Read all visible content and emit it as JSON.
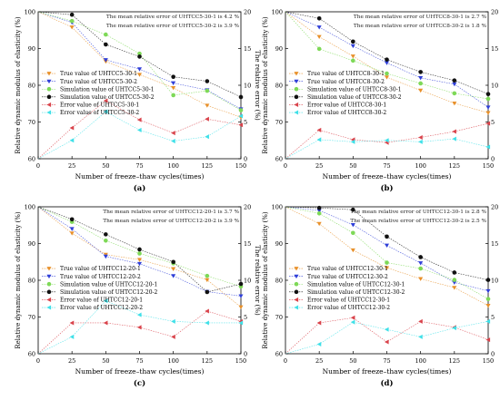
{
  "figure": {
    "markers": {
      "true1": "triangle-down",
      "true2": "triangle-down",
      "sim1": "circle",
      "sim2": "circle",
      "err1": "triangle-left",
      "err2": "triangle-left"
    },
    "colors": {
      "true1": "#e8902a",
      "true2": "#2f3fd8",
      "sim1": "#7ed957",
      "sim2": "#111111",
      "err1": "#d9434b",
      "err2": "#3fe0e8"
    }
  },
  "chart_data": [
    {
      "type": "line",
      "panel_label": "(a)",
      "xlabel": "Number of freeze–thaw cycles(times)",
      "ylabel": "Relative dynamic modulus of elasticity (%)",
      "y2label": "The relative error (%)",
      "x": [
        0,
        25,
        50,
        75,
        100,
        125,
        150
      ],
      "xticks": [
        "0",
        "25",
        "50",
        "75",
        "100",
        "125",
        "150"
      ],
      "ylim": [
        60,
        100
      ],
      "yticks": [
        "60",
        "70",
        "80",
        "90",
        "100"
      ],
      "y2lim": [
        0,
        20
      ],
      "y2ticks": [
        "0",
        "5",
        "10",
        "15",
        "20"
      ],
      "annotations": [
        "The mean relative error of UHTCC5-30-1 is 4.2 %",
        "The mean relative error of UHTCC5-30-2 is 3.9 %"
      ],
      "series": [
        {
          "key": "true1",
          "name": "True value of UHTCC5-30-1",
          "axis": "left",
          "values": [
            100,
            95.8,
            86.5,
            82.9,
            79.3,
            74.5,
            71.3
          ]
        },
        {
          "key": "true2",
          "name": "True value of UHTCC5-30-2",
          "axis": "left",
          "values": [
            100,
            97.1,
            86.9,
            84.4,
            80.6,
            78.7,
            73.5
          ]
        },
        {
          "key": "sim1",
          "name": "Simulation value of UHTCC5-30-1",
          "axis": "left",
          "values": [
            100,
            97.5,
            93.8,
            88.6,
            77.3,
            78.5,
            73.2
          ]
        },
        {
          "key": "sim2",
          "name": "Simulation value of UHTCC5-30-2",
          "axis": "left",
          "values": [
            100,
            99.2,
            91.1,
            87.8,
            82.3,
            81.1,
            76.8
          ]
        },
        {
          "key": "err1",
          "name": "Error value of UHTCC5-30-1",
          "axis": "right",
          "values": [
            0,
            4.2,
            7.9,
            5.3,
            3.5,
            5.4,
            4.6
          ]
        },
        {
          "key": "err2",
          "name": "Error value of UHTCC5-30-2",
          "axis": "right",
          "values": [
            0,
            2.5,
            6.4,
            3.9,
            2.4,
            3.0,
            5.8
          ]
        }
      ]
    },
    {
      "type": "line",
      "panel_label": "(b)",
      "xlabel": "Number of freeze–thaw cycles(times)",
      "ylabel": "Relative dynamic modulus of elasticity (%)",
      "y2label": "The relative error (%)",
      "x": [
        0,
        25,
        50,
        75,
        100,
        125,
        150
      ],
      "xticks": [
        "0",
        "25",
        "50",
        "75",
        "100",
        "125",
        "150"
      ],
      "ylim": [
        60,
        100
      ],
      "yticks": [
        "60",
        "70",
        "80",
        "90",
        "100"
      ],
      "y2lim": [
        0,
        20
      ],
      "y2ticks": [
        "0",
        "5",
        "10",
        "15",
        "20"
      ],
      "annotations": [
        "The mean relative error of UHTCC8-30-1 is 2.7 %",
        "The mean relative error of UHTCC8-30-2 is 1.8 %"
      ],
      "series": [
        {
          "key": "true1",
          "name": "True value of UHTCC8-30-1",
          "axis": "left",
          "values": [
            100,
            93.2,
            87.9,
            82.2,
            78.6,
            75.1,
            72.5
          ]
        },
        {
          "key": "true2",
          "name": "True value of UHTCC8-30-2",
          "axis": "left",
          "values": [
            100,
            95.8,
            90.7,
            86.1,
            82.0,
            80.3,
            74.0
          ]
        },
        {
          "key": "sim1",
          "name": "Simulation value of UHTCC8-30-1",
          "axis": "left",
          "values": [
            100,
            89.9,
            86.7,
            83.2,
            80.5,
            77.8,
            76.3
          ]
        },
        {
          "key": "sim2",
          "name": "Simulation value of UHTCC8-30-2",
          "axis": "left",
          "values": [
            100,
            98.2,
            91.9,
            87.0,
            83.6,
            81.3,
            77.6
          ]
        },
        {
          "key": "err1",
          "name": "Error value of UHTCC8-30-1",
          "axis": "right",
          "values": [
            0,
            3.9,
            2.6,
            2.2,
            2.9,
            3.7,
            4.8
          ]
        },
        {
          "key": "err2",
          "name": "Error value of UHTCC8-30-2",
          "axis": "right",
          "values": [
            0,
            2.6,
            2.3,
            2.5,
            2.3,
            2.7,
            1.6
          ]
        }
      ]
    },
    {
      "type": "line",
      "panel_label": "(c)",
      "xlabel": "Number of freeze–thaw cycles(times)",
      "ylabel": "Relative dynamic modulus of elasticity (%)",
      "y2label": "The relative error (%)",
      "x": [
        0,
        25,
        50,
        75,
        100,
        125,
        150
      ],
      "xticks": [
        "0",
        "25",
        "50",
        "75",
        "100",
        "125",
        "150"
      ],
      "ylim": [
        60,
        100
      ],
      "yticks": [
        "60",
        "70",
        "80",
        "90",
        "100"
      ],
      "y2lim": [
        0,
        20
      ],
      "y2ticks": [
        "0",
        "5",
        "10",
        "15",
        "20"
      ],
      "annotations": [
        "The mean relative error of UHTCC12-20-1 is 3.7 %",
        "The mean relative error of UHTCC12-20-2 is 3.9 %"
      ],
      "series": [
        {
          "key": "true1",
          "name": "True value of UHTCC12-20-1",
          "axis": "left",
          "values": [
            100,
            92.8,
            87.0,
            85.6,
            83.1,
            80.1,
            72.7
          ]
        },
        {
          "key": "true2",
          "name": "True value of UHTCC12-20-2",
          "axis": "left",
          "values": [
            100,
            94.0,
            86.5,
            84.5,
            81.2,
            76.9,
            75.7
          ]
        },
        {
          "key": "sim1",
          "name": "Simulation value of UHTCC12-20-1",
          "axis": "left",
          "values": [
            100,
            95.9,
            90.8,
            87.3,
            84.6,
            81.2,
            78.3
          ]
        },
        {
          "key": "sim2",
          "name": "Simulation value of UHTCC12-20-2",
          "axis": "left",
          "values": [
            100,
            96.6,
            92.5,
            88.4,
            85.0,
            76.8,
            79.0
          ]
        },
        {
          "key": "err1",
          "name": "Error value of UHTCC12-20-1",
          "axis": "right",
          "values": [
            0,
            4.2,
            4.2,
            3.6,
            2.3,
            5.8,
            4.4
          ]
        },
        {
          "key": "err2",
          "name": "Error value of UHTCC12-20-2",
          "axis": "right",
          "values": [
            0,
            2.3,
            7.2,
            5.3,
            4.4,
            4.2,
            4.2
          ]
        }
      ]
    },
    {
      "type": "line",
      "panel_label": "(d)",
      "xlabel": "Number of freeze–thaw cycles(times)",
      "ylabel": "Relative dynamic modulus of elasticity (%)",
      "y2label": "The relative error (%)",
      "x": [
        0,
        25,
        50,
        75,
        100,
        125,
        150
      ],
      "xticks": [
        "0",
        "25",
        "50",
        "75",
        "100",
        "125",
        "150"
      ],
      "ylim": [
        60,
        100
      ],
      "yticks": [
        "60",
        "70",
        "80",
        "90",
        "100"
      ],
      "y2lim": [
        0,
        20
      ],
      "y2ticks": [
        "0",
        "5",
        "10",
        "15",
        "20"
      ],
      "annotations": [
        "The mean relative error of UHTCC12-30-1 is 2.8 %",
        "The mean relative error of UHTCC12-30-2 is 2.5 %"
      ],
      "series": [
        {
          "key": "true1",
          "name": "True value of UHTCC12-30-1",
          "axis": "left",
          "values": [
            100,
            95.4,
            88.2,
            83.4,
            80.4,
            78.0,
            73.1
          ]
        },
        {
          "key": "true2",
          "name": "True value of UHTCC12-30-2",
          "axis": "left",
          "values": [
            100,
            99.0,
            95.1,
            89.5,
            84.7,
            79.4,
            77.1
          ]
        },
        {
          "key": "sim1",
          "name": "Simulation value of UHTCC12-30-1",
          "axis": "left",
          "values": [
            100,
            98.2,
            92.9,
            84.8,
            83.2,
            80.1,
            74.9
          ]
        },
        {
          "key": "sim2",
          "name": "Simulation value of UHTCC12-30-2",
          "axis": "left",
          "values": [
            100,
            99.7,
            99.2,
            91.9,
            86.3,
            82.1,
            80.1
          ]
        },
        {
          "key": "err1",
          "name": "Error value of UHTCC12-30-1",
          "axis": "right",
          "values": [
            0,
            4.2,
            4.9,
            1.6,
            4.4,
            3.6,
            1.9
          ]
        },
        {
          "key": "err2",
          "name": "Error value of UHTCC12-30-2",
          "axis": "right",
          "values": [
            0,
            1.3,
            4.3,
            3.3,
            2.3,
            3.5,
            4.4
          ]
        }
      ]
    }
  ]
}
